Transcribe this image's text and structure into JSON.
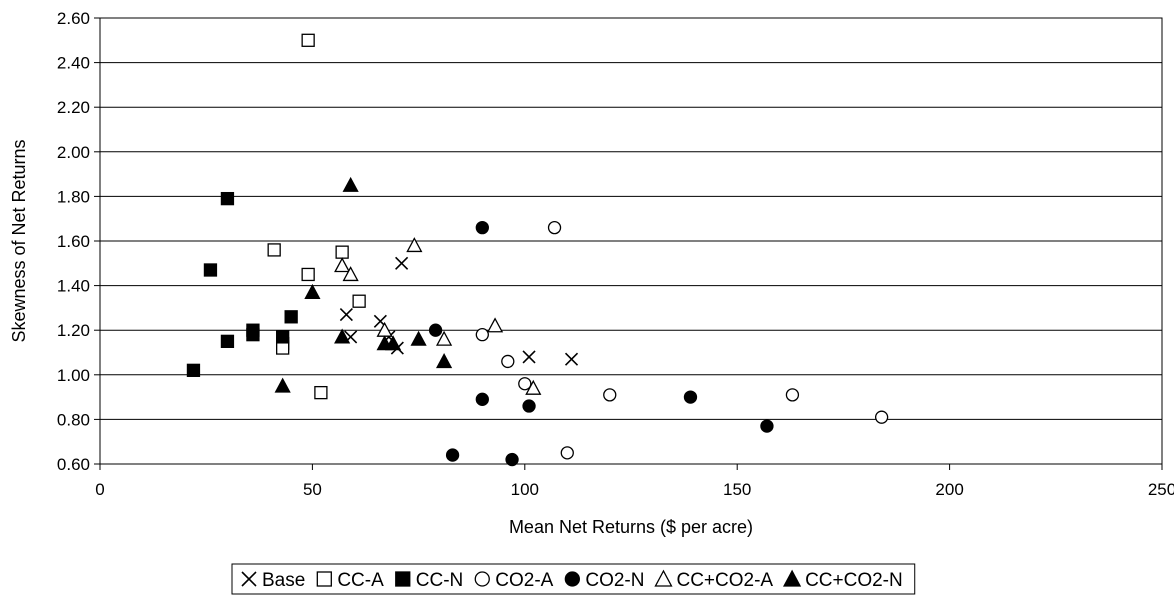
{
  "chart_data": {
    "type": "scatter",
    "title": "",
    "xlabel": "Mean Net Returns ($ per acre)",
    "ylabel": "Skewness of Net Returns",
    "xlim": [
      0,
      250
    ],
    "ylim": [
      0.6,
      2.6
    ],
    "x_ticks": [
      "0",
      "50",
      "100",
      "150",
      "200",
      "250"
    ],
    "y_ticks": [
      "0.60",
      "0.80",
      "1.00",
      "1.20",
      "1.40",
      "1.60",
      "1.80",
      "2.00",
      "2.20",
      "2.40",
      "2.60"
    ],
    "grid": "horizontal",
    "legend_position": "bottom",
    "series": [
      {
        "name": "Base",
        "marker": "x",
        "points": [
          [
            71,
            1.5
          ],
          [
            58,
            1.27
          ],
          [
            66,
            1.24
          ],
          [
            59,
            1.17
          ],
          [
            68,
            1.17
          ],
          [
            70,
            1.12
          ],
          [
            101,
            1.08
          ],
          [
            111,
            1.07
          ]
        ]
      },
      {
        "name": "CC-A",
        "marker": "open-square",
        "points": [
          [
            49,
            2.5
          ],
          [
            41,
            1.56
          ],
          [
            57,
            1.55
          ],
          [
            49,
            1.45
          ],
          [
            61,
            1.33
          ],
          [
            43,
            1.14
          ],
          [
            43,
            1.12
          ],
          [
            52,
            0.92
          ]
        ]
      },
      {
        "name": "CC-N",
        "marker": "filled-square",
        "points": [
          [
            30,
            1.79
          ],
          [
            26,
            1.47
          ],
          [
            45,
            1.26
          ],
          [
            36,
            1.2
          ],
          [
            36,
            1.18
          ],
          [
            30,
            1.15
          ],
          [
            43,
            1.17
          ],
          [
            22,
            1.02
          ]
        ]
      },
      {
        "name": "CO2-A",
        "marker": "open-circle",
        "points": [
          [
            107,
            1.66
          ],
          [
            90,
            1.18
          ],
          [
            96,
            1.06
          ],
          [
            100,
            0.96
          ],
          [
            120,
            0.91
          ],
          [
            163,
            0.91
          ],
          [
            184,
            0.81
          ],
          [
            110,
            0.65
          ]
        ]
      },
      {
        "name": "CO2-N",
        "marker": "filled-circle",
        "points": [
          [
            90,
            1.66
          ],
          [
            79,
            1.2
          ],
          [
            90,
            0.89
          ],
          [
            101,
            0.86
          ],
          [
            139,
            0.9
          ],
          [
            157,
            0.77
          ],
          [
            83,
            0.64
          ],
          [
            97,
            0.62
          ]
        ]
      },
      {
        "name": "CC+CO2-A",
        "marker": "open-triangle",
        "points": [
          [
            74,
            1.58
          ],
          [
            57,
            1.49
          ],
          [
            59,
            1.45
          ],
          [
            93,
            1.22
          ],
          [
            67,
            1.2
          ],
          [
            81,
            1.16
          ],
          [
            102,
            0.94
          ]
        ]
      },
      {
        "name": "CC+CO2-N",
        "marker": "filled-triangle",
        "points": [
          [
            59,
            1.85
          ],
          [
            50,
            1.37
          ],
          [
            57,
            1.17
          ],
          [
            67,
            1.14
          ],
          [
            69,
            1.14
          ],
          [
            75,
            1.16
          ],
          [
            81,
            1.06
          ],
          [
            43,
            0.95
          ]
        ]
      }
    ]
  }
}
